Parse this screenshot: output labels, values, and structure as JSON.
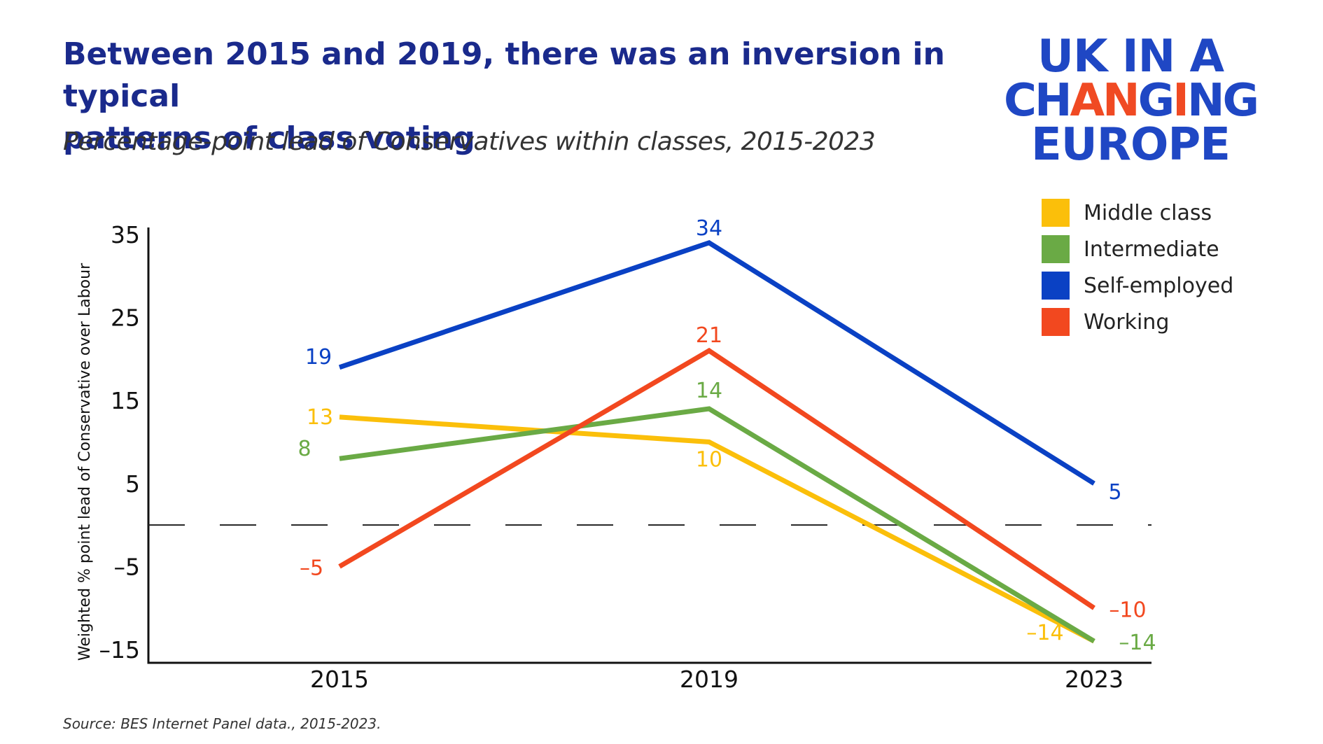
{
  "header": {
    "title_line1": "Between 2015 and 2019, there was an inversion in typical",
    "title_line2": "patterns of class voting",
    "subtitle": "Percentage-point lead of Conservatives within classes, 2015-2023"
  },
  "logo": {
    "line1": "UK IN A",
    "line2_a": "CH",
    "line2_b": "A",
    "line2_c": "N",
    "line2_d": "G",
    "line2_e": "I",
    "line2_f": "NG",
    "line3": "EUROPE",
    "brand_color": "#1f47c4",
    "accent_color": "#f04a23"
  },
  "source": "Source: BES Internet Panel data., 2015-2023.",
  "chart_data": {
    "type": "line",
    "title": "Between 2015 and 2019, there was an inversion in typical patterns of class voting",
    "subtitle": "Percentage-point lead of Conservatives within classes, 2015-2023",
    "xlabel": "",
    "ylabel": "Weighted % point lead of Conservative over Labour",
    "categories": [
      "2015",
      "2019",
      "2023"
    ],
    "ylim": [
      -15,
      35
    ],
    "yticks": [
      35,
      25,
      15,
      5,
      -5,
      -15
    ],
    "ytick_labels": [
      "35",
      "25",
      "15",
      "5",
      "–5",
      "–15"
    ],
    "reference_line": {
      "y": 0,
      "style": "dashed"
    },
    "legend_position": "top-right",
    "grid": false,
    "series": [
      {
        "name": "Middle class",
        "color": "#fbbf0a",
        "values": [
          13,
          10,
          -14
        ],
        "labels": [
          "13",
          "10",
          "–14"
        ]
      },
      {
        "name": "Intermediate",
        "color": "#6aaa45",
        "values": [
          8,
          14,
          -14
        ],
        "labels": [
          "8",
          "14",
          "–14"
        ]
      },
      {
        "name": "Self-employed",
        "color": "#0a41c4",
        "values": [
          19,
          34,
          5
        ],
        "labels": [
          "19",
          "34",
          "5"
        ]
      },
      {
        "name": "Working",
        "color": "#f2481f",
        "values": [
          -5,
          21,
          -10
        ],
        "labels": [
          "–5",
          "21",
          "–10"
        ]
      }
    ]
  }
}
